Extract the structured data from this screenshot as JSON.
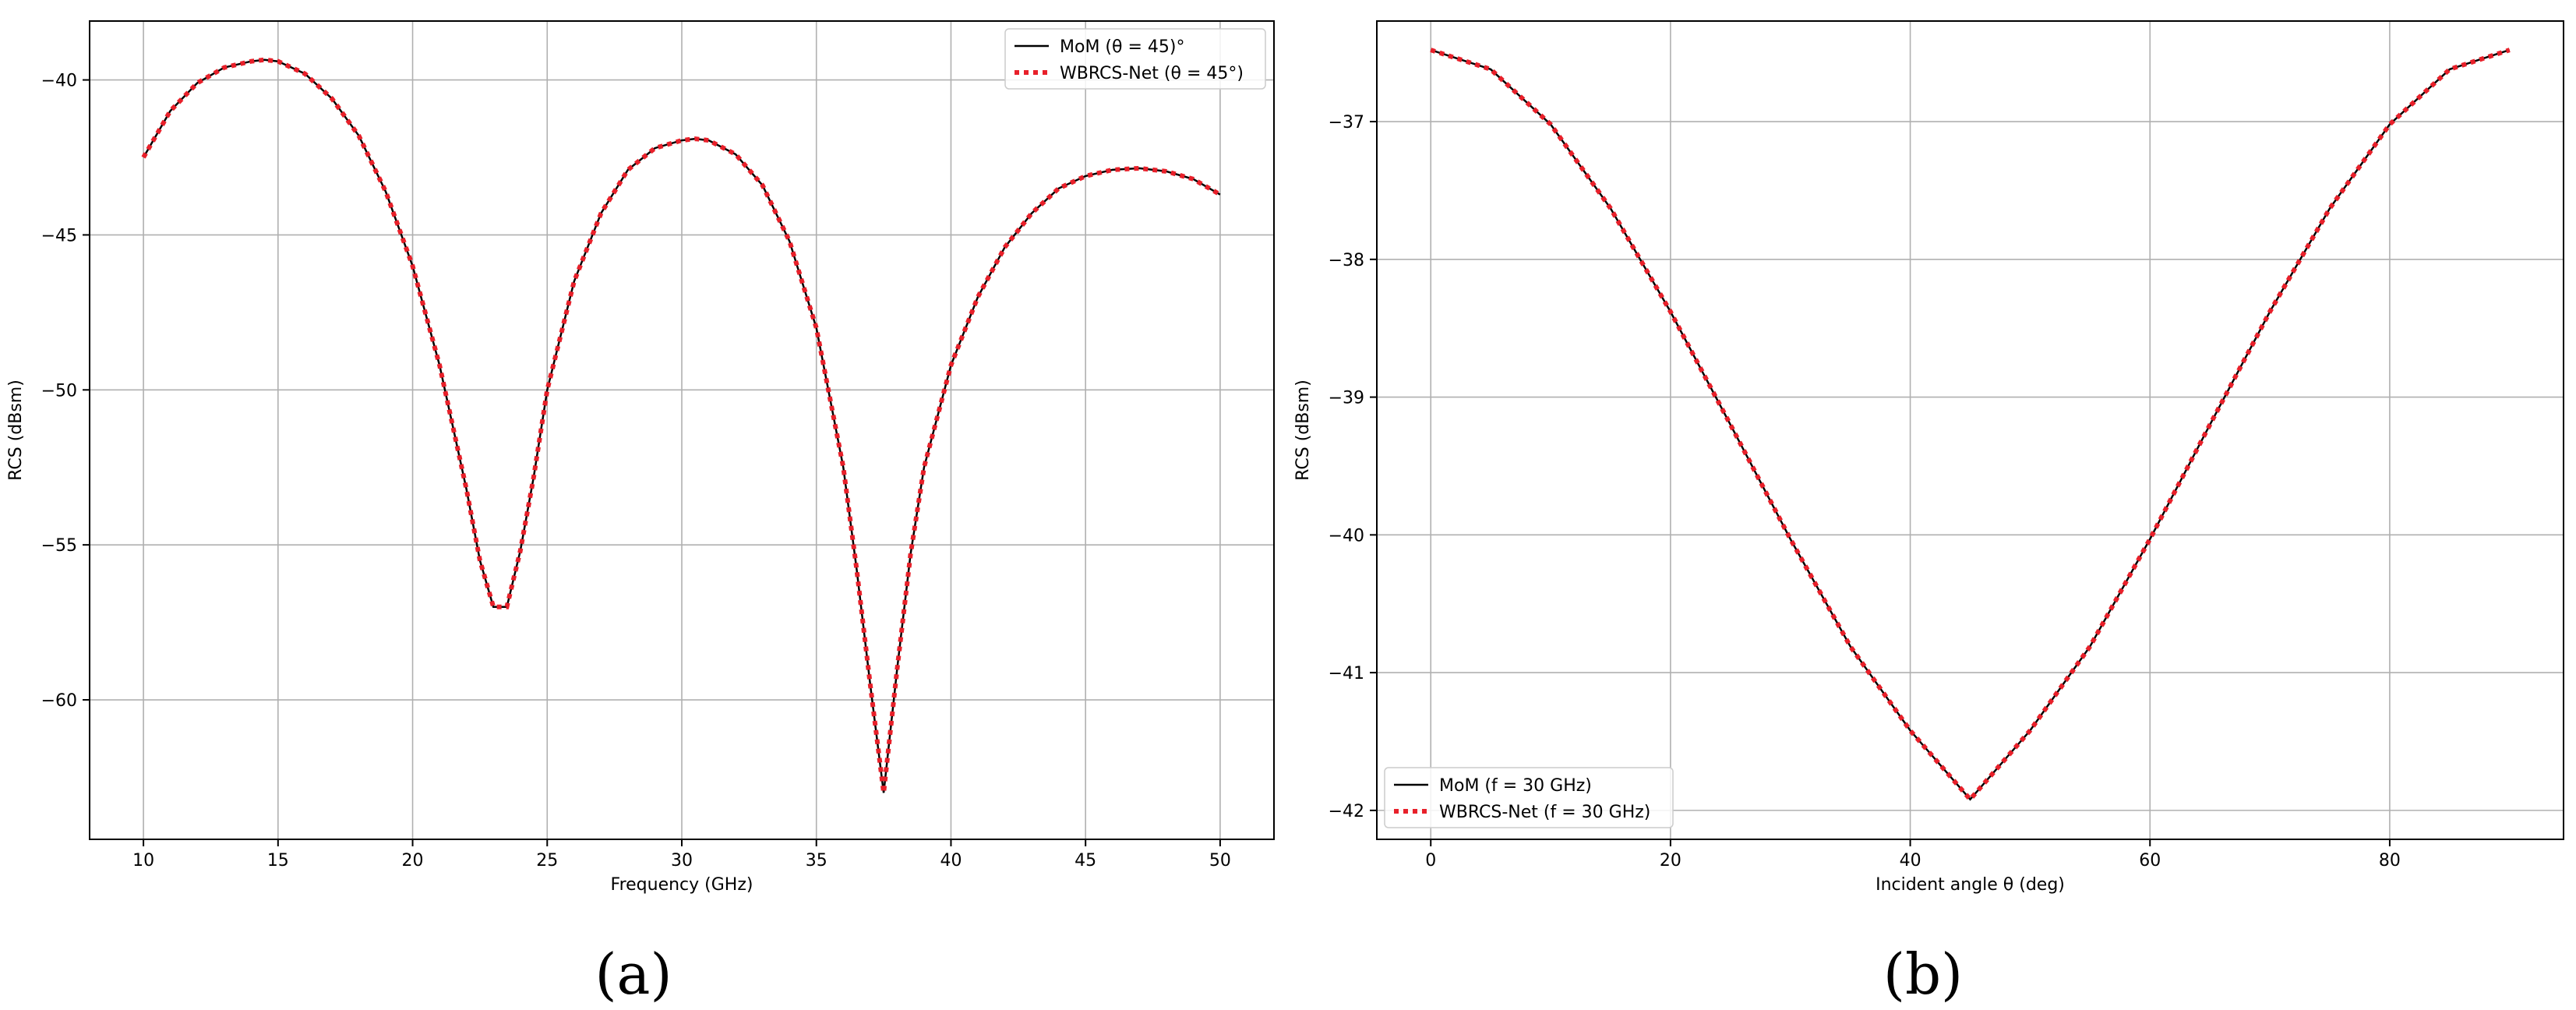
{
  "chart_data": [
    {
      "type": "line",
      "caption": "(a)",
      "xlabel": "Frequency (GHz)",
      "ylabel": "RCS (dBsm)",
      "xlim": [
        8,
        52
      ],
      "ylim": [
        -64.5,
        -38.1
      ],
      "xticks": [
        10,
        15,
        20,
        25,
        30,
        35,
        40,
        45,
        50
      ],
      "xtick_labels": [
        "10",
        "15",
        "20",
        "25",
        "30",
        "35",
        "40",
        "45",
        "50"
      ],
      "yticks": [
        -40,
        -45,
        -50,
        -55,
        -60
      ],
      "ytick_labels": [
        "−40",
        "−45",
        "−50",
        "−55",
        "−60"
      ],
      "grid": true,
      "legend_position": "top-right",
      "x": [
        10,
        11,
        12,
        13,
        14,
        14.5,
        15,
        16,
        17,
        18,
        19,
        20,
        21,
        22,
        22.5,
        23,
        23.5,
        24,
        24.5,
        25,
        26,
        27,
        28,
        29,
        30,
        30.5,
        31,
        32,
        33,
        34,
        35,
        36,
        36.5,
        37,
        37.5,
        38,
        38.5,
        39,
        40,
        41,
        42,
        43,
        44,
        45,
        46,
        47,
        48,
        49,
        50
      ],
      "series": [
        {
          "name": "MoM (θ = 45)°",
          "color": "#000000",
          "style": "solid",
          "values": [
            -42.5,
            -41.0,
            -40.1,
            -39.6,
            -39.4,
            -39.35,
            -39.4,
            -39.8,
            -40.6,
            -41.8,
            -43.6,
            -46.0,
            -49.2,
            -53.2,
            -55.5,
            -57.0,
            -57.0,
            -55.2,
            -52.8,
            -50.0,
            -46.5,
            -44.3,
            -42.9,
            -42.2,
            -41.95,
            -41.9,
            -41.95,
            -42.4,
            -43.4,
            -45.2,
            -48.0,
            -52.5,
            -55.8,
            -59.5,
            -63.0,
            -59.0,
            -55.3,
            -52.5,
            -49.2,
            -47.0,
            -45.4,
            -44.3,
            -43.5,
            -43.1,
            -42.9,
            -42.85,
            -42.95,
            -43.2,
            -43.7
          ]
        },
        {
          "name": "WBRCS-Net (θ = 45°)",
          "color": "#e8202a",
          "style": "dotted",
          "values": [
            -42.5,
            -41.0,
            -40.1,
            -39.6,
            -39.4,
            -39.35,
            -39.4,
            -39.8,
            -40.6,
            -41.8,
            -43.6,
            -46.0,
            -49.2,
            -53.2,
            -55.5,
            -57.0,
            -57.0,
            -55.2,
            -52.8,
            -50.0,
            -46.5,
            -44.3,
            -42.9,
            -42.2,
            -41.95,
            -41.9,
            -41.95,
            -42.4,
            -43.4,
            -45.2,
            -48.0,
            -52.5,
            -55.8,
            -59.5,
            -63.0,
            -59.0,
            -55.3,
            -52.5,
            -49.2,
            -47.0,
            -45.4,
            -44.3,
            -43.5,
            -43.1,
            -42.9,
            -42.85,
            -42.95,
            -43.2,
            -43.7
          ]
        }
      ]
    },
    {
      "type": "line",
      "caption": "(b)",
      "xlabel": "Incident angle θ (deg)",
      "ylabel": "RCS (dBsm)",
      "xlim": [
        -4.5,
        94.5
      ],
      "ylim": [
        -42.21,
        -36.27
      ],
      "xticks": [
        0,
        20,
        40,
        60,
        80
      ],
      "xtick_labels": [
        "0",
        "20",
        "40",
        "60",
        "80"
      ],
      "yticks": [
        -37,
        -38,
        -39,
        -40,
        -41,
        -42
      ],
      "ytick_labels": [
        "−37",
        "−38",
        "−39",
        "−40",
        "−41",
        "−42"
      ],
      "grid": true,
      "legend_position": "bottom-left",
      "x": [
        0,
        5,
        10,
        15,
        20,
        25,
        30,
        35,
        40,
        45,
        50,
        55,
        60,
        65,
        70,
        75,
        80,
        85,
        90
      ],
      "series": [
        {
          "name": "MoM (f = 30 GHz)",
          "color": "#000000",
          "style": "solid",
          "values": [
            -36.48,
            -36.62,
            -37.02,
            -37.63,
            -38.38,
            -39.2,
            -40.03,
            -40.81,
            -41.42,
            -41.92,
            -41.42,
            -40.81,
            -40.03,
            -39.2,
            -38.38,
            -37.63,
            -37.02,
            -36.62,
            -36.48
          ]
        },
        {
          "name": "WBRCS-Net (f = 30 GHz)",
          "color": "#e8202a",
          "style": "dotted",
          "values": [
            -36.48,
            -36.62,
            -37.02,
            -37.63,
            -38.38,
            -39.2,
            -40.03,
            -40.81,
            -41.42,
            -41.92,
            -41.42,
            -40.81,
            -40.03,
            -39.2,
            -38.38,
            -37.63,
            -37.02,
            -36.62,
            -36.48
          ]
        }
      ]
    }
  ]
}
